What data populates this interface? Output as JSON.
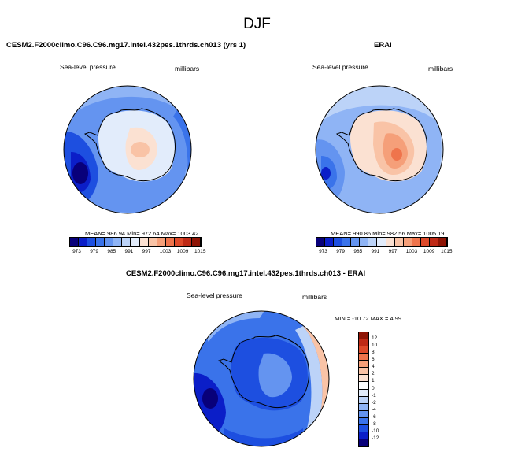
{
  "title": "DJF",
  "panels": [
    {
      "id": "model",
      "title": "CESM2.F2000climo.C96.C96.mg17.intel.432pes.1thrds.ch013 (yrs 1)",
      "variable": "Sea-level pressure",
      "units": "millibars",
      "stats": "MEAN= 986.94   Min= 972.64   Max= 1003.42",
      "colorbar_ticks": [
        "973",
        "979",
        "985",
        "991",
        "997",
        "1003",
        "1009",
        "1015"
      ]
    },
    {
      "id": "obs",
      "title": "ERAI",
      "variable": "Sea-level pressure",
      "units": "millibars",
      "stats": "MEAN= 990.86   Min= 982.56   Max= 1005.19",
      "colorbar_ticks": [
        "973",
        "979",
        "985",
        "991",
        "997",
        "1003",
        "1009",
        "1015"
      ]
    },
    {
      "id": "diff",
      "title": "CESM2.F2000climo.C96.C96.mg17.intel.432pes.1thrds.ch013 - ERAI",
      "variable": "Sea-level pressure",
      "units": "millibars",
      "stats": "MIN = -10.72 MAX =   4.99",
      "colorbar_ticks": [
        "12",
        "10",
        "8",
        "6",
        "4",
        "2",
        "1",
        "0",
        "-1",
        "-2",
        "-4",
        "-6",
        "-8",
        "-10",
        "-12"
      ]
    }
  ],
  "colors": {
    "abs_scale": [
      "#08007a",
      "#0b1ec8",
      "#1d4fe0",
      "#3a73ea",
      "#6494f0",
      "#8fb4f5",
      "#bcd3f8",
      "#e2ecfb",
      "#fbe1d2",
      "#f9c3a6",
      "#f59f79",
      "#ef744c",
      "#de4a2a",
      "#bf2a16",
      "#8e1405"
    ],
    "diff_scale": [
      "#8e1405",
      "#bf2a16",
      "#de4a2a",
      "#ef744c",
      "#f59f79",
      "#f9c3a6",
      "#fbe1d2",
      "#ffffff",
      "#e2ecfb",
      "#bcd3f8",
      "#8fb4f5",
      "#6494f0",
      "#3a73ea",
      "#1d4fe0",
      "#0b1ec8",
      "#08007a"
    ]
  }
}
